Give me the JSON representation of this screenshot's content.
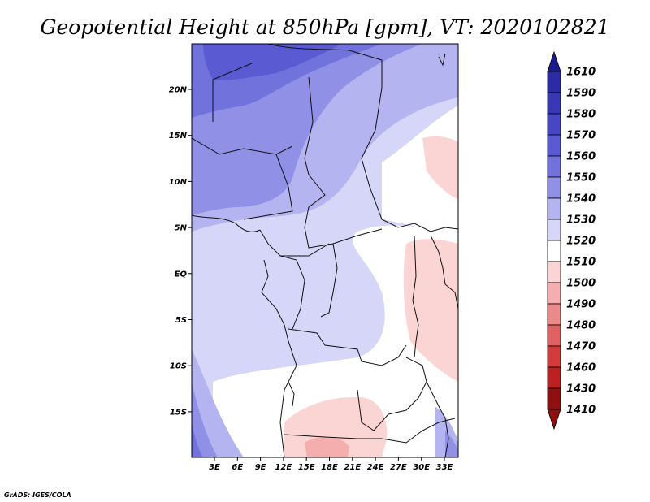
{
  "title": "Geopotential Height at 850hPa [gpm], VT: 2020102821",
  "credit": "GrADS: IGES/COLA",
  "map": {
    "lat_labels": [
      "20N",
      "15N",
      "10N",
      "5N",
      "EQ",
      "5S",
      "10S",
      "15S"
    ],
    "lon_labels": [
      "3E",
      "6E",
      "9E",
      "12E",
      "15E",
      "18E",
      "21E",
      "24E",
      "27E",
      "30E",
      "33E"
    ]
  },
  "colorbar": {
    "levels": [
      "1610",
      "1590",
      "1580",
      "1570",
      "1560",
      "1550",
      "1540",
      "1530",
      "1520",
      "1510",
      "1500",
      "1490",
      "1480",
      "1470",
      "1460",
      "1430",
      "1410"
    ],
    "colors": [
      "#1b1b8e",
      "#2b2ba6",
      "#3838b6",
      "#4747c6",
      "#5a5ad3",
      "#7272dc",
      "#9090e6",
      "#b4b4f0",
      "#d6d6f8",
      "#ffffff",
      "#fbd4d4",
      "#f4aeae",
      "#ec8a8a",
      "#e06262",
      "#d43c3c",
      "#bd2020",
      "#8e1010"
    ]
  },
  "chart_data": {
    "type": "heatmap",
    "title": "Geopotential Height at 850hPa [gpm], VT: 2020102821",
    "variable": "Geopotential Height at 850hPa",
    "units": "gpm",
    "valid_time": "2020102821",
    "lon_range": [
      0,
      35
    ],
    "lat_range": [
      -20,
      25
    ],
    "lat_ticks": [
      "20N",
      "15N",
      "10N",
      "5N",
      "EQ",
      "5S",
      "10S",
      "15S"
    ],
    "lon_ticks": [
      "3E",
      "6E",
      "9E",
      "12E",
      "15E",
      "18E",
      "21E",
      "24E",
      "27E",
      "30E",
      "33E"
    ],
    "contour_levels": [
      1410,
      1430,
      1460,
      1470,
      1480,
      1490,
      1500,
      1510,
      1520,
      1530,
      1540,
      1550,
      1560,
      1570,
      1580,
      1590,
      1610
    ]
  }
}
